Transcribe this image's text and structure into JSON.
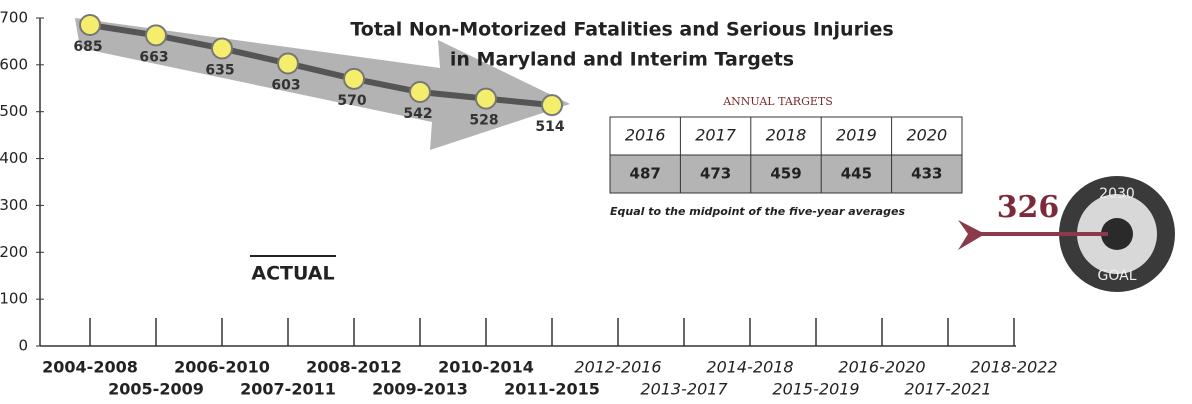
{
  "chart_data": {
    "type": "line",
    "title": [
      "Total Non-Motorized Fatalities and Serious Injuries",
      "in Maryland  and Interim Targets"
    ],
    "categories": [
      "2004-2008",
      "2005-2009",
      "2006-2010",
      "2007-2011",
      "2008-2012",
      "2009-2013",
      "2010-2014",
      "2011-2015",
      "2012-2016",
      "2013-2017",
      "2014-2018",
      "2015-2019",
      "2016-2020",
      "2017-2021",
      "2018-2022"
    ],
    "series": [
      {
        "name": "ACTUAL",
        "color": "#555555",
        "values": [
          685,
          663,
          635,
          603,
          570,
          542,
          528,
          514,
          null,
          null,
          null,
          null,
          null,
          null,
          null
        ]
      }
    ],
    "ylim": [
      0,
      700
    ],
    "yticks": [
      0,
      100,
      200,
      300,
      400,
      500,
      600,
      700
    ],
    "marker_color": "#f4ee6c"
  },
  "annual_targets": {
    "title": "ANNUAL TARGETS",
    "years": [
      "2016",
      "2017",
      "2018",
      "2019",
      "2020"
    ],
    "values": [
      "487",
      "473",
      "459",
      "445",
      "433"
    ],
    "note": "Equal to the midpoint of the five-year averages"
  },
  "goal": {
    "value": "326",
    "year": "2030",
    "label": "GOAL"
  }
}
